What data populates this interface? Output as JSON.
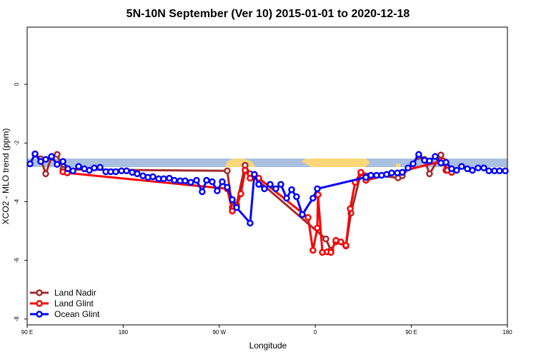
{
  "chart_data": {
    "type": "line",
    "title": "5N-10N September (Ver 10)   2015-01-01 to 2020-12-18",
    "x_label": "Longitude",
    "y_label": "XCO2 - MLO trend (ppm)",
    "xlim": [
      90,
      540
    ],
    "xticks": [
      {
        "value": 90,
        "label": "90 E"
      },
      {
        "value": 180,
        "label": "180"
      },
      {
        "value": 270,
        "label": "90 W"
      },
      {
        "value": 360,
        "label": "0"
      },
      {
        "value": 450,
        "label": "90 E"
      },
      {
        "value": 540,
        "label": "180"
      }
    ],
    "ylim": [
      -8.2,
      1.95
    ],
    "yticks": [
      0,
      -2,
      -4,
      -6,
      -8
    ],
    "grid": false,
    "legend": "bottom-left",
    "series": [
      {
        "name": "Land Nadir",
        "color": "#a52a2a",
        "x": [
          97.4,
          102.7,
          107.4,
          112.8,
          118.1,
          123.5,
          277.5,
          282.2,
          286.2,
          294.2,
          298.9,
          369.9,
          374.6,
          379.3,
          388.7,
          393.4,
          402.7,
          437.5,
          441.5,
          456.9,
          462.3,
          467.0,
          477.7,
          482.4,
          487.7
        ],
        "values": [
          -2.39,
          -2.54,
          -3.05,
          -2.49,
          -2.39,
          -2.9,
          -2.95,
          -4.2,
          -4.1,
          -2.76,
          -3.05,
          -5.27,
          -5.66,
          -5.37,
          -5.51,
          -4.39,
          -3.02,
          -3.19,
          -3.12,
          -2.46,
          -2.56,
          -3.05,
          -2.41,
          -2.93,
          -2.93
        ]
      },
      {
        "name": "Land Glint",
        "color": "#ff0000",
        "x": [
          123.5,
          127.5,
          277.5,
          282.2,
          286.2,
          290.2,
          294.2,
          298.9,
          307.0,
          353.2,
          357.8,
          361.9,
          362.5,
          366.6,
          371.2,
          374.6,
          379.3,
          383.9,
          388.7,
          392.7,
          397.3,
          402.7,
          407.4,
          479.7,
          483.7,
          487.7
        ],
        "values": [
          -2.98,
          -3.02,
          -3.56,
          -4.32,
          -4.17,
          -3.73,
          -2.93,
          -3.2,
          -3.2,
          -4.54,
          -5.66,
          -4.9,
          -3.76,
          -5.73,
          -5.71,
          -5.73,
          -5.32,
          -5.37,
          -5.49,
          -4.24,
          -3.34,
          -3.0,
          -3.27,
          -2.61,
          -2.93,
          -3.0
        ]
      },
      {
        "name": "Ocean Glint",
        "color": "#0000ff",
        "x": [
          92.7,
          97.4,
          102.7,
          107.4,
          112.8,
          118.1,
          123.5,
          128.2,
          132.9,
          138.2,
          143.6,
          148.3,
          152.9,
          158.3,
          163.7,
          168.3,
          173.0,
          178.4,
          183.1,
          188.4,
          193.1,
          198.5,
          203.2,
          207.8,
          213.2,
          217.9,
          223.2,
          227.9,
          233.3,
          238.0,
          243.3,
          248.7,
          254.0,
          258.1,
          263.4,
          268.1,
          272.8,
          277.5,
          282.2,
          286.2,
          298.9,
          302.9,
          307.0,
          312.3,
          317.7,
          323.0,
          327.7,
          333.1,
          337.8,
          342.4,
          347.8,
          357.8,
          361.9,
          407.4,
          412.1,
          417.4,
          422.1,
          426.8,
          431.5,
          436.9,
          441.5,
          446.9,
          451.6,
          456.9,
          462.3,
          467.0,
          472.3,
          477.7,
          482.4,
          487.7,
          492.4,
          497.1,
          502.5,
          507.2,
          512.5,
          517.9,
          522.6,
          527.9,
          532.6,
          538.0
        ],
        "values": [
          -2.71,
          -2.37,
          -2.63,
          -2.56,
          -2.46,
          -2.73,
          -2.63,
          -2.88,
          -2.95,
          -2.8,
          -2.88,
          -2.93,
          -2.85,
          -2.83,
          -2.98,
          -2.98,
          -2.98,
          -2.95,
          -2.95,
          -3.0,
          -3.05,
          -3.12,
          -3.17,
          -3.15,
          -3.22,
          -3.22,
          -3.2,
          -3.27,
          -3.29,
          -3.29,
          -3.34,
          -3.27,
          -3.66,
          -3.27,
          -3.32,
          -3.63,
          -3.32,
          -3.51,
          -3.93,
          -4.2,
          -4.73,
          -3.07,
          -3.41,
          -3.56,
          -3.41,
          -3.56,
          -3.41,
          -3.88,
          -3.59,
          -3.83,
          -4.44,
          -3.88,
          -3.56,
          -3.17,
          -3.1,
          -3.1,
          -3.1,
          -3.07,
          -3.02,
          -3.02,
          -3.0,
          -2.85,
          -2.71,
          -2.39,
          -2.59,
          -2.61,
          -2.46,
          -2.68,
          -2.66,
          -2.88,
          -2.93,
          -2.8,
          -2.88,
          -2.93,
          -2.85,
          -2.85,
          -2.95,
          -2.95,
          -2.95,
          -2.95
        ]
      }
    ]
  }
}
